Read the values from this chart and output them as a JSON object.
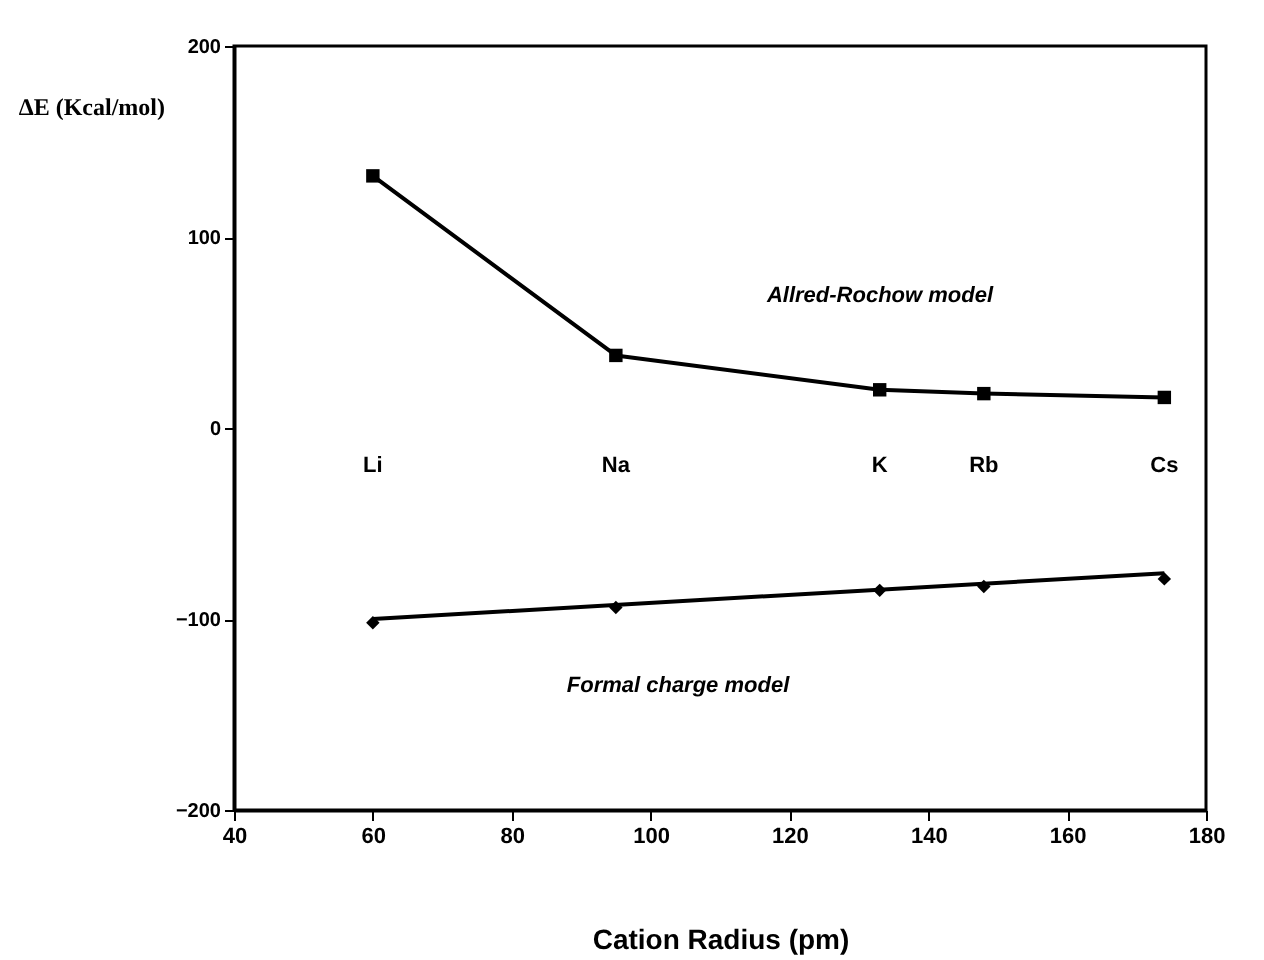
{
  "chart_data": {
    "type": "line",
    "xlabel": "Cation Radius    (pm)",
    "ylabel": "ΔE  (Kcal/mol)",
    "xlim": [
      40,
      180
    ],
    "xticks": [
      40,
      60,
      80,
      100,
      120,
      140,
      160,
      180
    ],
    "ylim": [
      -200,
      200
    ],
    "yticks": [
      -200,
      -100,
      0,
      100,
      200
    ],
    "grid": false,
    "series": [
      {
        "marker": "square",
        "color": "#000000",
        "x": [
          60,
          95,
          133,
          148,
          174
        ],
        "values": [
          132,
          38,
          20,
          18,
          16
        ]
      },
      {
        "type": "scatter",
        "marker": "diamond",
        "color": "#000000",
        "x": [
          60,
          95,
          133,
          148,
          174
        ],
        "values": [
          -102,
          -94,
          -85,
          -83,
          -79
        ]
      },
      {
        "marker": "none",
        "color": "#000000",
        "x": [
          60,
          174
        ],
        "values": [
          -100,
          -76
        ]
      }
    ],
    "annotations": [
      "Li",
      "Na",
      "K",
      "Rb",
      "Cs",
      "Allred-Rochow  model",
      "Formal  charge  model"
    ]
  }
}
